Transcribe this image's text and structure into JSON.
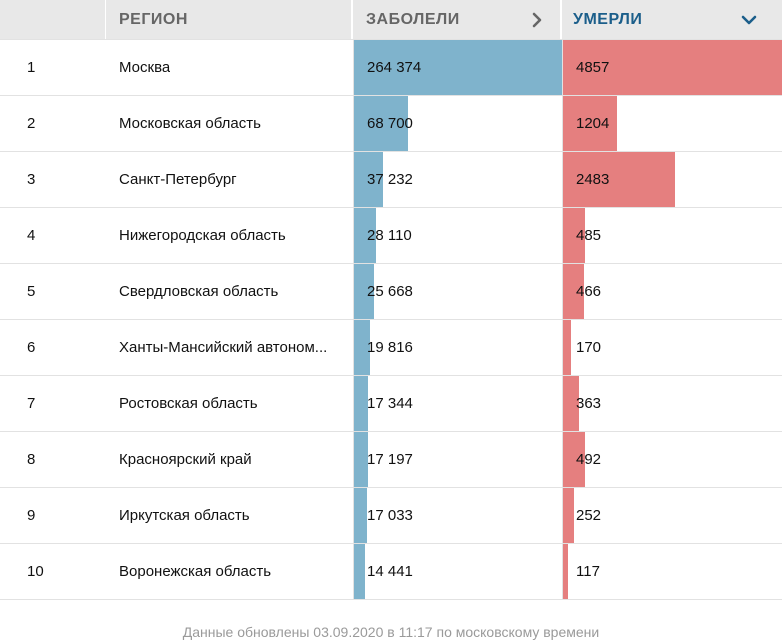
{
  "header": {
    "num_label": "",
    "region_label": "РЕГИОН",
    "cases_label": "ЗАБОЛЕЛИ",
    "deaths_label": "УМЕРЛИ",
    "cases_icon": "chevron-right-icon",
    "deaths_icon": "chevron-down-icon"
  },
  "colors": {
    "cases_bar": "#7fb3cc",
    "deaths_bar": "#e57f7f",
    "sorted_header": "#1b5e8a"
  },
  "rows": [
    {
      "rank": "1",
      "region": "Москва",
      "cases": "264 374",
      "deaths": "4857",
      "cases_value": 264374,
      "deaths_value": 4857
    },
    {
      "rank": "2",
      "region": "Московская область",
      "cases": "68 700",
      "deaths": "1204",
      "cases_value": 68700,
      "deaths_value": 1204
    },
    {
      "rank": "3",
      "region": "Санкт-Петербург",
      "cases": "37 232",
      "deaths": "2483",
      "cases_value": 37232,
      "deaths_value": 2483
    },
    {
      "rank": "4",
      "region": "Нижегородская область",
      "cases": "28 110",
      "deaths": "485",
      "cases_value": 28110,
      "deaths_value": 485
    },
    {
      "rank": "5",
      "region": "Свердловская область",
      "cases": "25 668",
      "deaths": "466",
      "cases_value": 25668,
      "deaths_value": 466
    },
    {
      "rank": "6",
      "region": "Ханты-Мансийский автоном...",
      "cases": "19 816",
      "deaths": "170",
      "cases_value": 19816,
      "deaths_value": 170
    },
    {
      "rank": "7",
      "region": "Ростовская область",
      "cases": "17 344",
      "deaths": "363",
      "cases_value": 17344,
      "deaths_value": 363
    },
    {
      "rank": "8",
      "region": "Красноярский край",
      "cases": "17 197",
      "deaths": "492",
      "cases_value": 17197,
      "deaths_value": 492
    },
    {
      "rank": "9",
      "region": "Иркутская область",
      "cases": "17 033",
      "deaths": "252",
      "cases_value": 17033,
      "deaths_value": 252
    },
    {
      "rank": "10",
      "region": "Воронежская область",
      "cases": "14 441",
      "deaths": "117",
      "cases_value": 14441,
      "deaths_value": 117
    }
  ],
  "footer": {
    "text": "Данные обновлены 03.09.2020 в 11:17 по московскому времени"
  }
}
